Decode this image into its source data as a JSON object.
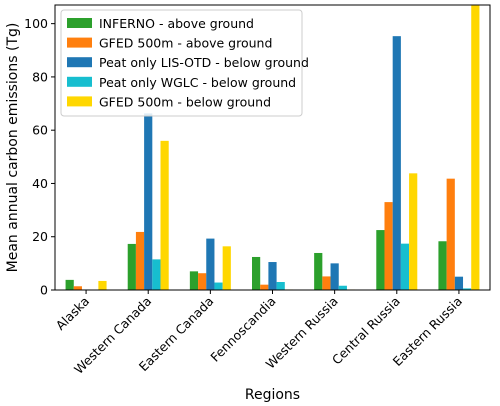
{
  "chart_data": {
    "type": "bar",
    "xlabel": "Regions",
    "ylabel": "Mean annual carbon emissions (Tg)",
    "categories": [
      "Alaska",
      "Western Canada",
      "Eastern Canada",
      "Fennoscandia",
      "Western Russia",
      "Central Russia",
      "Eastern Russia"
    ],
    "ylim": [
      0,
      107
    ],
    "yticks": [
      0,
      20,
      40,
      60,
      80,
      100
    ],
    "grid": false,
    "legend_position": "top-left",
    "series": [
      {
        "name": "INFERNO - above ground",
        "color": "#2ca02c",
        "values": [
          3.8,
          17.3,
          7.0,
          12.4,
          13.9,
          22.5,
          18.3
        ]
      },
      {
        "name": "GFED 500m - above ground",
        "color": "#ff7f0e",
        "values": [
          1.4,
          21.8,
          6.3,
          2.0,
          5.1,
          33.0,
          41.8
        ]
      },
      {
        "name": "Peat only LIS-OTD - below ground",
        "color": "#1f77b4",
        "values": [
          0.2,
          66.3,
          19.3,
          10.5,
          10.0,
          95.3,
          5.0
        ]
      },
      {
        "name": "Peat only WGLC - below ground",
        "color": "#17becf",
        "values": [
          0.1,
          11.5,
          2.8,
          3.0,
          1.6,
          17.4,
          0.6
        ]
      },
      {
        "name": "GFED 500m - below ground",
        "color": "#ffd700",
        "values": [
          3.4,
          56.0,
          16.4,
          0.2,
          0.2,
          43.8,
          106.8
        ]
      }
    ]
  }
}
